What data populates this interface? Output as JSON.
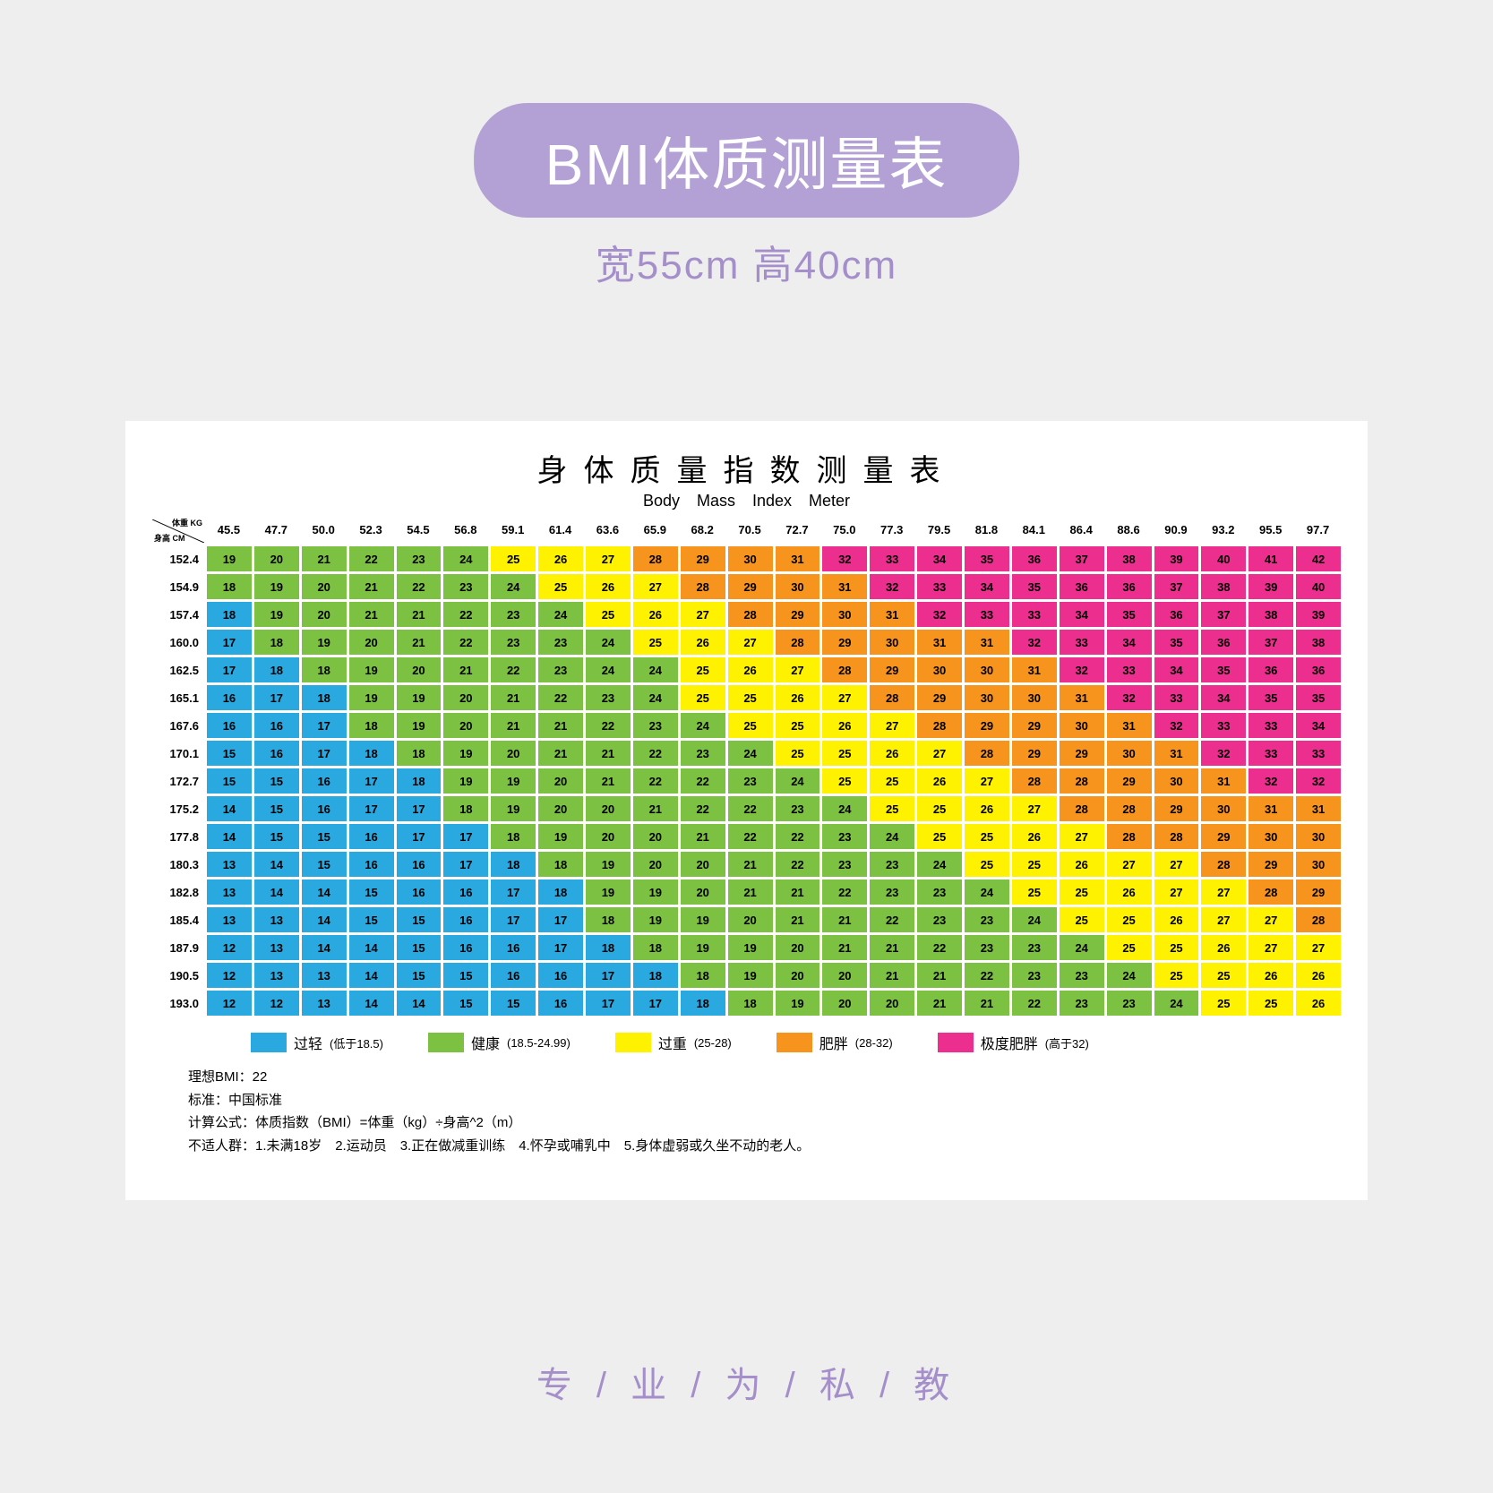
{
  "page_bg": "#eeeeee",
  "header": {
    "pill_bg": "#b3a1d6",
    "pill_text_color": "#ffffff",
    "title": "BMI体质测量表",
    "dimensions": "宽55cm 高40cm",
    "dimensions_color": "#a58fca"
  },
  "chart": {
    "card_bg": "#ffffff",
    "title_cn": "身体质量指数测量表",
    "title_en": "Body   Mass   Index   Meter",
    "corner_kg_label": "体重 KG",
    "corner_cm_label": "身高 CM",
    "weights": [
      "45.5",
      "47.7",
      "50.0",
      "52.3",
      "54.5",
      "56.8",
      "59.1",
      "61.4",
      "63.6",
      "65.9",
      "68.2",
      "70.5",
      "72.7",
      "75.0",
      "77.3",
      "79.5",
      "81.8",
      "84.1",
      "86.4",
      "88.6",
      "90.9",
      "93.2",
      "95.5",
      "97.7"
    ],
    "heights": [
      "152.4",
      "154.9",
      "157.4",
      "160.0",
      "162.5",
      "165.1",
      "167.6",
      "170.1",
      "172.7",
      "175.2",
      "177.8",
      "180.3",
      "182.8",
      "185.4",
      "187.9",
      "190.5",
      "193.0"
    ],
    "thresholds": {
      "under": 18.5,
      "healthy_max": 24.99,
      "over_max": 28,
      "obese_max": 32
    },
    "colors": {
      "under": "#2aa9e0",
      "healthy": "#7cc142",
      "over": "#fff200",
      "obese": "#f7941e",
      "extreme": "#ec2e8e"
    },
    "legend": [
      {
        "key": "under",
        "label": "过轻",
        "range": "(低于18.5)"
      },
      {
        "key": "healthy",
        "label": "健康",
        "range": "(18.5-24.99)"
      },
      {
        "key": "over",
        "label": "过重",
        "range": "(25-28)"
      },
      {
        "key": "obese",
        "label": "肥胖",
        "range": "(28-32)"
      },
      {
        "key": "extreme",
        "label": "极度肥胖",
        "range": "(高于32)"
      }
    ],
    "notes": [
      "理想BMI：22",
      "标准：中国标准",
      "计算公式：体质指数（BMI）=体重（kg）÷身高^2（m）",
      "不适人群：1.未满18岁　2.运动员　3.正在做减重训练　4.怀孕或哺乳中　5.身体虚弱或久坐不动的老人。"
    ]
  },
  "footer": {
    "text": "专 / 业 / 为 / 私 / 教",
    "color": "#a58fca"
  }
}
